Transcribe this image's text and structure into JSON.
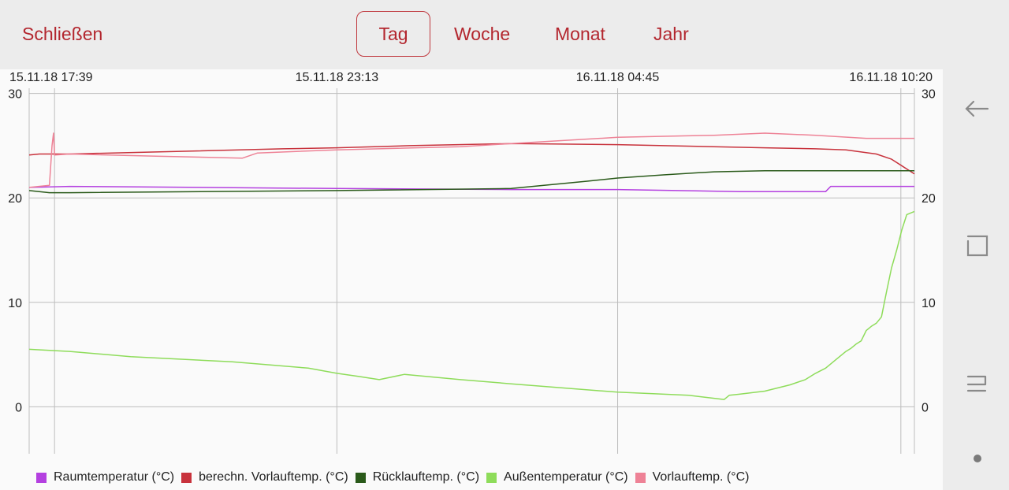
{
  "toolbar": {
    "close_label": "Schließen",
    "tabs": [
      {
        "label": "Tag",
        "active": true
      },
      {
        "label": "Woche",
        "active": false
      },
      {
        "label": "Monat",
        "active": false
      },
      {
        "label": "Jahr",
        "active": false
      }
    ]
  },
  "navigation_bar": {
    "buttons": [
      "back-icon",
      "recents-icon",
      "home-icon",
      "dot-indicator-icon"
    ]
  },
  "colors": {
    "accent": "#b3262e",
    "raum": "#b440e0",
    "berechn": "#c8323c",
    "ruecklauf": "#2a5a1a",
    "aussen": "#8edc5a",
    "vorlauf": "#ee8296"
  },
  "chart_data": {
    "type": "line",
    "x_tick_labels": [
      "15.11.18 17:39",
      "15.11.18 23:13",
      "16.11.18 04:45",
      "16.11.18 10:20"
    ],
    "x_ticks": [
      0,
      5.566,
      11.1,
      16.683
    ],
    "x_range": [
      -0.5,
      16.95
    ],
    "y_ticks": [
      0,
      10,
      20,
      30
    ],
    "ylim": [
      -4.5,
      30.5
    ],
    "grid": true,
    "right_axis_mirrored": true,
    "legend_position": "bottom",
    "series": [
      {
        "name": "Raumtemperatur (°C)",
        "color": "#b440e0",
        "x": [
          -0.5,
          0.3,
          5.566,
          9.0,
          11.1,
          13.5,
          14.6,
          15.2,
          15.3,
          16.95
        ],
        "y": [
          21.0,
          21.1,
          20.9,
          20.8,
          20.8,
          20.6,
          20.6,
          20.6,
          21.1,
          21.1
        ]
      },
      {
        "name": "berechn. Vorlauftemp. (°C)",
        "color": "#c8323c",
        "x": [
          -0.5,
          -0.3,
          0.3,
          2.0,
          4.5,
          5.566,
          7.0,
          9.0,
          11.1,
          13.0,
          14.0,
          15.0,
          15.6,
          16.2,
          16.5,
          16.95
        ],
        "y": [
          24.1,
          24.2,
          24.2,
          24.4,
          24.7,
          24.8,
          25.0,
          25.2,
          25.1,
          24.9,
          24.8,
          24.7,
          24.6,
          24.2,
          23.7,
          22.3
        ]
      },
      {
        "name": "Rücklauftemp. (°C)",
        "color": "#2a5a1a",
        "x": [
          -0.5,
          -0.1,
          0.3,
          5.566,
          9.0,
          10.5,
          11.1,
          12.0,
          13.0,
          14.0,
          15.0,
          16.0,
          16.95
        ],
        "y": [
          20.7,
          20.5,
          20.5,
          20.7,
          20.9,
          21.6,
          21.9,
          22.2,
          22.5,
          22.6,
          22.6,
          22.6,
          22.6
        ]
      },
      {
        "name": "Außentemperatur (°C)",
        "color": "#8edc5a",
        "x": [
          -0.5,
          0.3,
          1.5,
          3.5,
          5.0,
          5.566,
          6.0,
          6.4,
          6.9,
          8.0,
          9.0,
          11.1,
          12.5,
          13.2,
          13.3,
          13.5,
          14.0,
          14.5,
          14.8,
          15.0,
          15.2,
          15.4,
          15.6,
          15.7,
          15.8,
          15.9,
          16.0,
          16.1,
          16.2,
          16.3,
          16.4,
          16.5,
          16.6,
          16.7,
          16.8,
          16.95
        ],
        "y": [
          5.5,
          5.3,
          4.8,
          4.3,
          3.7,
          3.2,
          2.9,
          2.6,
          3.1,
          2.6,
          2.2,
          1.4,
          1.1,
          0.7,
          1.1,
          1.2,
          1.5,
          2.1,
          2.6,
          3.2,
          3.7,
          4.5,
          5.3,
          5.6,
          6.0,
          6.3,
          7.3,
          7.7,
          8.0,
          8.6,
          11.0,
          13.3,
          15.0,
          16.9,
          18.4,
          18.7
        ]
      },
      {
        "name": "Vorlauftemp. (°C)",
        "color": "#ee8296",
        "x": [
          -0.5,
          -0.1,
          -0.05,
          -0.02,
          0.0,
          0.3,
          2.0,
          3.7,
          4.0,
          5.566,
          8.0,
          9.0,
          11.1,
          13.0,
          14.0,
          15.0,
          16.0,
          16.95
        ],
        "y": [
          21.0,
          21.2,
          25.0,
          26.2,
          24.1,
          24.2,
          24.0,
          23.8,
          24.3,
          24.6,
          24.9,
          25.2,
          25.8,
          26.0,
          26.2,
          26.0,
          25.7,
          25.7
        ]
      }
    ]
  }
}
